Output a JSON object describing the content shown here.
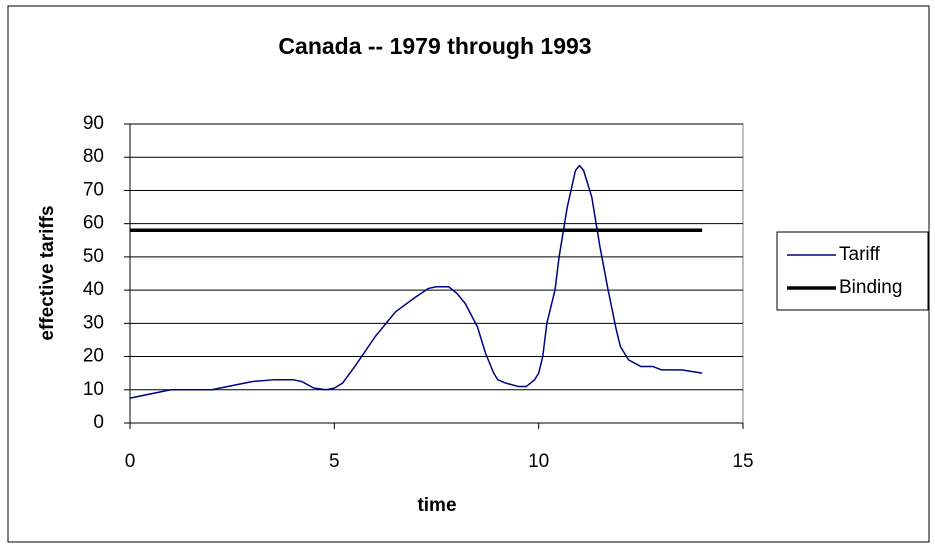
{
  "chart_data": {
    "type": "line",
    "title": "Canada -- 1979 through 1993",
    "x_label": "time",
    "y_label": "effective tariffs",
    "xlim": [
      0,
      15
    ],
    "xticks": [
      0,
      5,
      10,
      15
    ],
    "ylim": [
      0,
      90
    ],
    "yticks": [
      0,
      10,
      20,
      30,
      40,
      50,
      60,
      70,
      80,
      90
    ],
    "grid": true,
    "legend": "right",
    "series": [
      {
        "name": "Tariff",
        "color": "#000080",
        "x": [
          0,
          1,
          2,
          3,
          3.5,
          4,
          4.2,
          4.5,
          4.8,
          5,
          5.2,
          5.5,
          6,
          6.5,
          7,
          7.3,
          7.5,
          7.8,
          8,
          8.2,
          8.5,
          8.7,
          8.9,
          9,
          9.2,
          9.5,
          9.7,
          9.9,
          10,
          10.1,
          10.2,
          10.4,
          10.5,
          10.7,
          10.9,
          11,
          11.1,
          11.3,
          11.5,
          11.7,
          11.9,
          12,
          12.2,
          12.5,
          12.8,
          13,
          13.5,
          14
        ],
        "values": [
          7.5,
          10,
          10,
          12.5,
          13,
          13,
          12.5,
          10.5,
          10,
          10.5,
          12,
          17,
          26,
          33.5,
          38,
          40.5,
          41,
          41,
          39,
          36,
          29,
          21,
          15,
          13,
          12,
          11,
          11,
          13,
          15,
          20,
          30,
          40,
          50,
          65,
          76,
          77.5,
          76,
          68,
          53,
          40,
          28,
          23,
          19,
          17,
          17,
          16,
          16,
          15
        ]
      },
      {
        "name": "Binding",
        "color": "#000000",
        "x": [
          0,
          14
        ],
        "values": [
          58,
          58
        ]
      }
    ]
  }
}
